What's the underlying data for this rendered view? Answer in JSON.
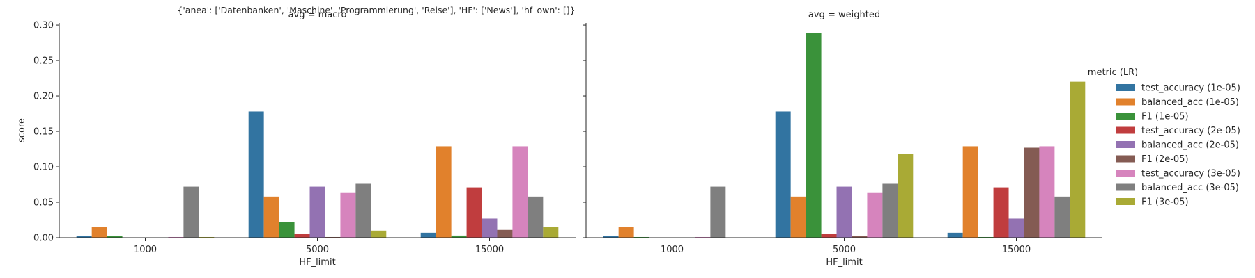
{
  "suptitle": "{'anea': ['Datenbanken', 'Maschine', 'Programmierung', 'Reise'], 'HF': ['News'], 'hf_own': []}",
  "legend_title": "metric (LR)",
  "chart_data": [
    {
      "type": "bar",
      "title": "avg = macro",
      "xlabel": "HF_limit",
      "ylabel": "score",
      "categories": [
        "1000",
        "5000",
        "15000"
      ],
      "ylim": [
        0,
        0.303
      ],
      "yticks": [
        0.0,
        0.05,
        0.1,
        0.15,
        0.2,
        0.25,
        0.3
      ],
      "ytick_labels": [
        "0.00",
        "0.05",
        "0.10",
        "0.15",
        "0.20",
        "0.25",
        "0.30"
      ],
      "series": [
        {
          "name": "test_accuracy (1e-05)",
          "color": "#3274a1",
          "values": [
            0.002,
            0.178,
            0.007
          ]
        },
        {
          "name": "balanced_acc (1e-05)",
          "color": "#e1812c",
          "values": [
            0.015,
            0.058,
            0.129
          ]
        },
        {
          "name": "F1 (1e-05)",
          "color": "#3a923a",
          "values": [
            0.002,
            0.022,
            0.003
          ]
        },
        {
          "name": "test_accuracy (2e-05)",
          "color": "#c03d3e",
          "values": [
            0.0,
            0.005,
            0.071
          ]
        },
        {
          "name": "balanced_acc (2e-05)",
          "color": "#9372b2",
          "values": [
            0.0,
            0.072,
            0.027
          ]
        },
        {
          "name": "F1 (2e-05)",
          "color": "#845b53",
          "values": [
            0.0,
            0.001,
            0.011
          ]
        },
        {
          "name": "test_accuracy (3e-05)",
          "color": "#d684bd",
          "values": [
            0.001,
            0.064,
            0.129
          ]
        },
        {
          "name": "balanced_acc (3e-05)",
          "color": "#7f7f7f",
          "values": [
            0.072,
            0.076,
            0.058
          ]
        },
        {
          "name": "F1 (3e-05)",
          "color": "#a9aa35",
          "values": [
            0.001,
            0.01,
            0.015
          ]
        }
      ]
    },
    {
      "type": "bar",
      "title": "avg = weighted",
      "xlabel": "HF_limit",
      "ylabel": "",
      "categories": [
        "1000",
        "5000",
        "15000"
      ],
      "ylim": [
        0,
        0.303
      ],
      "yticks": [
        0.0,
        0.05,
        0.1,
        0.15,
        0.2,
        0.25,
        0.3
      ],
      "series": [
        {
          "name": "test_accuracy (1e-05)",
          "color": "#3274a1",
          "values": [
            0.002,
            0.178,
            0.007
          ]
        },
        {
          "name": "balanced_acc (1e-05)",
          "color": "#e1812c",
          "values": [
            0.015,
            0.058,
            0.129
          ]
        },
        {
          "name": "F1 (1e-05)",
          "color": "#3a923a",
          "values": [
            0.001,
            0.289,
            0.001
          ]
        },
        {
          "name": "test_accuracy (2e-05)",
          "color": "#c03d3e",
          "values": [
            0.0,
            0.005,
            0.071
          ]
        },
        {
          "name": "balanced_acc (2e-05)",
          "color": "#9372b2",
          "values": [
            0.0,
            0.072,
            0.027
          ]
        },
        {
          "name": "F1 (2e-05)",
          "color": "#845b53",
          "values": [
            0.0,
            0.002,
            0.127
          ]
        },
        {
          "name": "test_accuracy (3e-05)",
          "color": "#d684bd",
          "values": [
            0.001,
            0.064,
            0.129
          ]
        },
        {
          "name": "balanced_acc (3e-05)",
          "color": "#7f7f7f",
          "values": [
            0.072,
            0.076,
            0.058
          ]
        },
        {
          "name": "F1 (3e-05)",
          "color": "#a9aa35",
          "values": [
            0.0,
            0.118,
            0.22
          ]
        }
      ]
    }
  ]
}
